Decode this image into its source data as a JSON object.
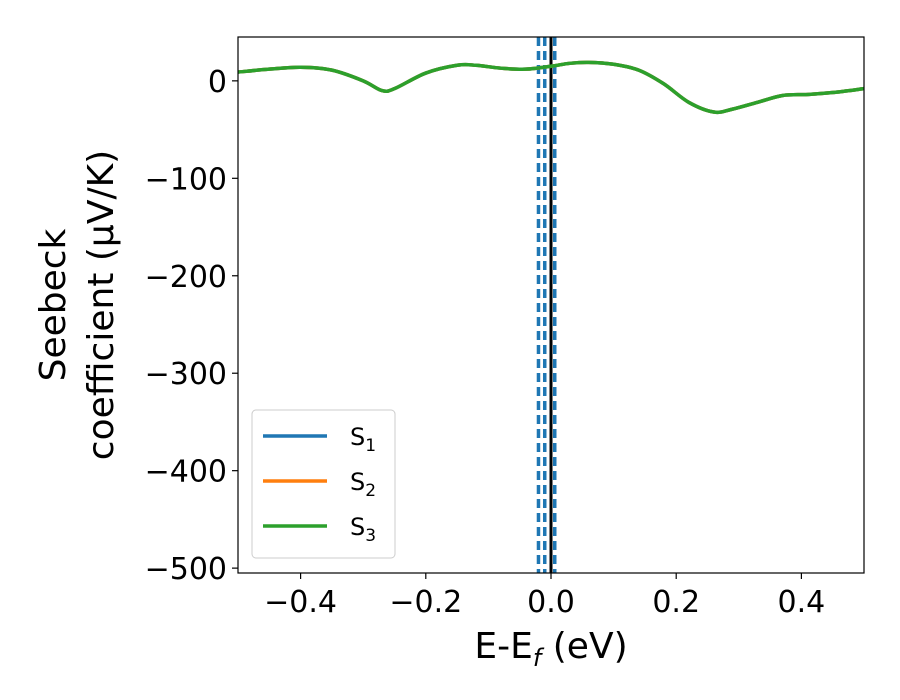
{
  "chart_data": {
    "type": "line",
    "xlabel": {
      "base": "E-E",
      "sub": "f",
      "suffix": " (eV)"
    },
    "ylabel": {
      "line1": "Seebeck",
      "line2": "coefficient  (μV/K)"
    },
    "xlim": [
      -0.5,
      0.5
    ],
    "ylim": [
      -505,
      45
    ],
    "xticks": [
      -0.4,
      -0.2,
      0.0,
      0.2,
      0.4
    ],
    "xtick_labels": [
      "−0.4",
      "−0.2",
      "0.0",
      "0.2",
      "0.4"
    ],
    "yticks": [
      0,
      -100,
      -200,
      -300,
      -400,
      -500
    ],
    "ytick_labels": [
      "0",
      "−100",
      "−200",
      "−300",
      "−400",
      "−500"
    ],
    "grid": false,
    "legend_position": "lower-left",
    "x": [
      -0.5,
      -0.45,
      -0.4,
      -0.35,
      -0.3,
      -0.27,
      -0.25,
      -0.2,
      -0.15,
      -0.12,
      -0.08,
      -0.04,
      0.0,
      0.03,
      0.06,
      0.1,
      0.14,
      0.18,
      0.22,
      0.26,
      0.29,
      0.33,
      0.37,
      0.41,
      0.45,
      0.5
    ],
    "series": [
      {
        "name": "S",
        "sub": "1",
        "color": "#1f77b4",
        "values": [
          9,
          12,
          14,
          11,
          0,
          -10,
          -8,
          8,
          16,
          16,
          13,
          12,
          15,
          18,
          19,
          17,
          11,
          -3,
          -22,
          -32,
          -29,
          -22,
          -15,
          -14,
          -12,
          -8
        ]
      },
      {
        "name": "S",
        "sub": "2",
        "color": "#ff7f0e",
        "values": [
          9,
          12,
          14,
          11,
          0,
          -10,
          -8,
          8,
          16,
          16,
          13,
          12,
          15,
          18,
          19,
          17,
          11,
          -3,
          -22,
          -32,
          -29,
          -22,
          -15,
          -14,
          -12,
          -8
        ]
      },
      {
        "name": "S",
        "sub": "3",
        "color": "#2ca02c",
        "values": [
          9,
          12,
          14,
          11,
          0,
          -10,
          -8,
          8,
          16,
          16,
          13,
          12,
          15,
          18,
          19,
          17,
          11,
          -3,
          -22,
          -32,
          -29,
          -22,
          -15,
          -14,
          -12,
          -8
        ]
      }
    ],
    "vlines": [
      {
        "x": -0.02,
        "style": "dashed",
        "color": "#1f77b4"
      },
      {
        "x": -0.01,
        "style": "dashed",
        "color": "#1f77b4"
      },
      {
        "x": 0.0,
        "style": "solid",
        "color": "#000000"
      },
      {
        "x": 0.006,
        "style": "dashed",
        "color": "#1f77b4"
      }
    ]
  }
}
